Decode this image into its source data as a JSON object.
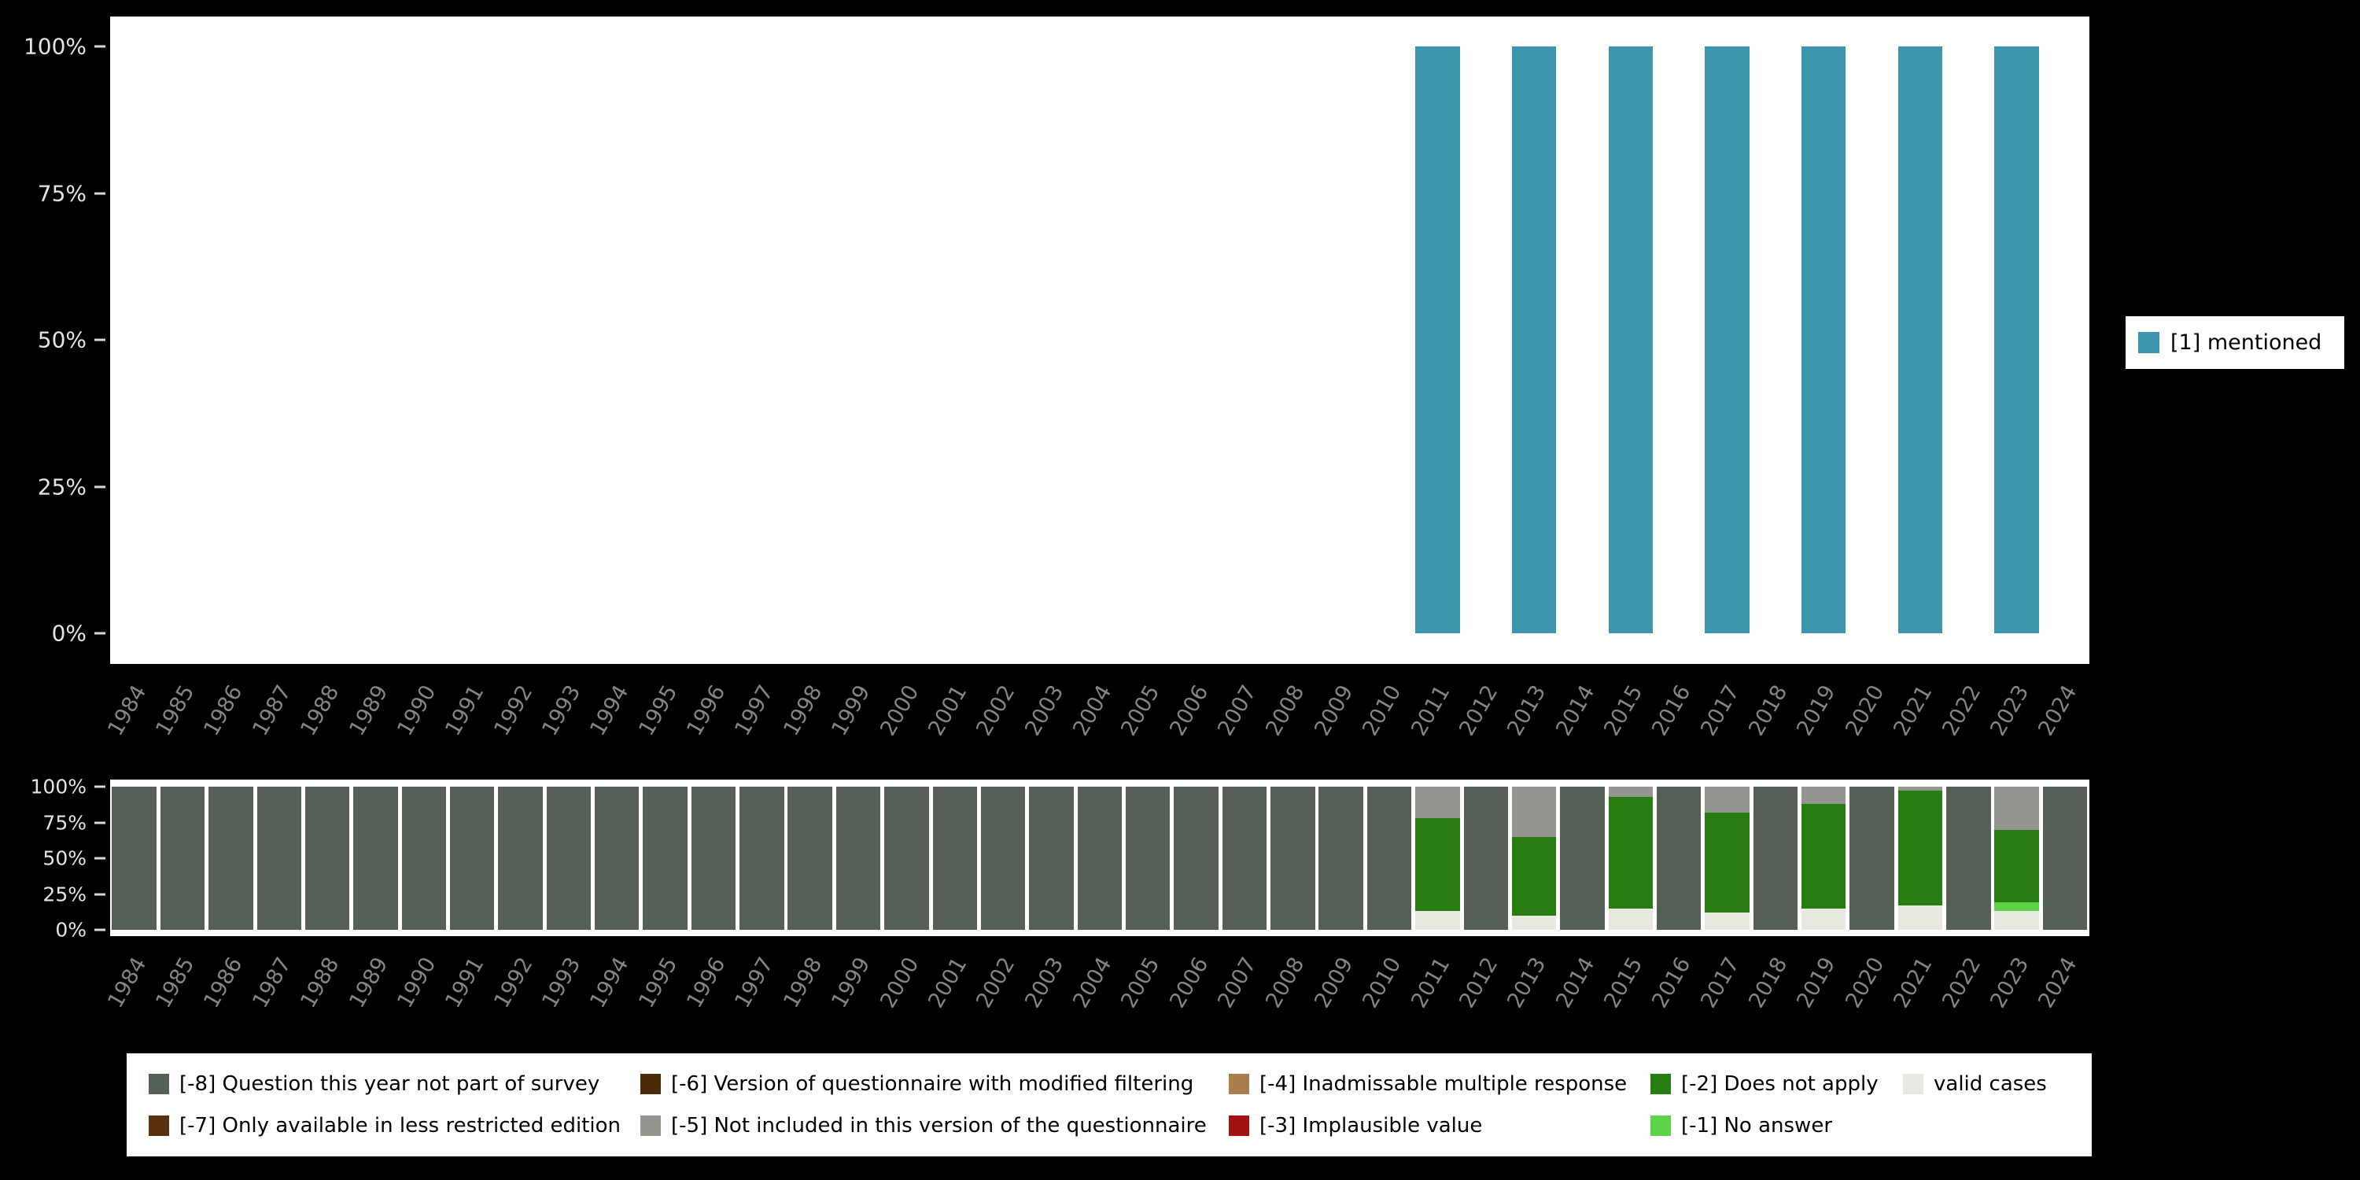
{
  "colors": {
    "background": "#000000",
    "panel": "#ffffff",
    "axis_tick_label": "#e4e4e4",
    "year_label": "#858585"
  },
  "categories": {
    "valid": {
      "label": "valid cases",
      "color": "#e8e8e0"
    },
    "m1": {
      "label": "[-1] No answer",
      "color": "#5cd348"
    },
    "m2": {
      "label": "[-2] Does not apply",
      "color": "#277c12"
    },
    "m3": {
      "label": "[-3] Implausible value",
      "color": "#a31212"
    },
    "m4": {
      "label": "[-4] Inadmissable multiple response",
      "color": "#a97e4f"
    },
    "m5": {
      "label": "[-5] Not included in this version of the questionnaire",
      "color": "#93978f"
    },
    "m6": {
      "label": "[-6] Version of questionnaire with modified filtering",
      "color": "#4a2a08"
    },
    "m7": {
      "label": "[-7] Only available in less restricted edition",
      "color": "#5a3110"
    },
    "m8": {
      "label": "[-8] Question this year not part of survey",
      "color": "#565f56"
    }
  },
  "chart_data": [
    {
      "type": "bar",
      "title": "",
      "xlabel": "",
      "ylabel": "",
      "ylim": [
        0,
        100
      ],
      "grid": false,
      "legend_position": "right",
      "yticks": [
        {
          "pct": 100,
          "label": "100%"
        },
        {
          "pct": 75,
          "label": "75%"
        },
        {
          "pct": 50,
          "label": "50%"
        },
        {
          "pct": 25,
          "label": "25%"
        },
        {
          "pct": 0,
          "label": "0%"
        }
      ],
      "categories": [
        "1984",
        "1985",
        "1986",
        "1987",
        "1988",
        "1989",
        "1990",
        "1991",
        "1992",
        "1993",
        "1994",
        "1995",
        "1996",
        "1997",
        "1998",
        "1999",
        "2000",
        "2001",
        "2002",
        "2003",
        "2004",
        "2005",
        "2006",
        "2007",
        "2008",
        "2009",
        "2010",
        "2011",
        "2012",
        "2013",
        "2014",
        "2015",
        "2016",
        "2017",
        "2018",
        "2019",
        "2020",
        "2021",
        "2022",
        "2023",
        "2024"
      ],
      "series": [
        {
          "name": "[1] mentioned",
          "color": "#3c96ad",
          "values": [
            0,
            0,
            0,
            0,
            0,
            0,
            0,
            0,
            0,
            0,
            0,
            0,
            0,
            0,
            0,
            0,
            0,
            0,
            0,
            0,
            0,
            0,
            0,
            0,
            0,
            0,
            0,
            100,
            0,
            100,
            0,
            100,
            0,
            100,
            0,
            100,
            0,
            100,
            0,
            100,
            0
          ]
        }
      ]
    },
    {
      "type": "stacked-bar",
      "title": "",
      "xlabel": "",
      "ylabel": "",
      "ylim": [
        0,
        100
      ],
      "grid": false,
      "legend_position": "bottom",
      "yticks": [
        {
          "pct": 100,
          "label": "100%"
        },
        {
          "pct": 75,
          "label": "75%"
        },
        {
          "pct": 50,
          "label": "50%"
        },
        {
          "pct": 25,
          "label": "25%"
        },
        {
          "pct": 0,
          "label": "0%"
        }
      ],
      "categories": [
        "1984",
        "1985",
        "1986",
        "1987",
        "1988",
        "1989",
        "1990",
        "1991",
        "1992",
        "1993",
        "1994",
        "1995",
        "1996",
        "1997",
        "1998",
        "1999",
        "2000",
        "2001",
        "2002",
        "2003",
        "2004",
        "2005",
        "2006",
        "2007",
        "2008",
        "2009",
        "2010",
        "2011",
        "2012",
        "2013",
        "2014",
        "2015",
        "2016",
        "2017",
        "2018",
        "2019",
        "2020",
        "2021",
        "2022",
        "2023",
        "2024"
      ],
      "series": [
        {
          "id": "valid",
          "values": [
            0,
            0,
            0,
            0,
            0,
            0,
            0,
            0,
            0,
            0,
            0,
            0,
            0,
            0,
            0,
            0,
            0,
            0,
            0,
            0,
            0,
            0,
            0,
            0,
            0,
            0,
            0,
            13,
            0,
            10,
            0,
            15,
            0,
            12,
            0,
            15,
            0,
            17,
            0,
            13,
            0
          ]
        },
        {
          "id": "m1",
          "values": [
            0,
            0,
            0,
            0,
            0,
            0,
            0,
            0,
            0,
            0,
            0,
            0,
            0,
            0,
            0,
            0,
            0,
            0,
            0,
            0,
            0,
            0,
            0,
            0,
            0,
            0,
            0,
            0,
            0,
            0,
            0,
            0,
            0,
            0,
            0,
            0,
            0,
            0,
            0,
            6,
            0
          ]
        },
        {
          "id": "m2",
          "values": [
            0,
            0,
            0,
            0,
            0,
            0,
            0,
            0,
            0,
            0,
            0,
            0,
            0,
            0,
            0,
            0,
            0,
            0,
            0,
            0,
            0,
            0,
            0,
            0,
            0,
            0,
            0,
            65,
            0,
            55,
            0,
            78,
            0,
            70,
            0,
            73,
            0,
            80,
            0,
            51,
            0
          ]
        },
        {
          "id": "m3",
          "values": [
            0,
            0,
            0,
            0,
            0,
            0,
            0,
            0,
            0,
            0,
            0,
            0,
            0,
            0,
            0,
            0,
            0,
            0,
            0,
            0,
            0,
            0,
            0,
            0,
            0,
            0,
            0,
            0,
            0,
            0,
            0,
            0,
            0,
            0,
            0,
            0,
            0,
            0,
            0,
            0,
            0
          ]
        },
        {
          "id": "m4",
          "values": [
            0,
            0,
            0,
            0,
            0,
            0,
            0,
            0,
            0,
            0,
            0,
            0,
            0,
            0,
            0,
            0,
            0,
            0,
            0,
            0,
            0,
            0,
            0,
            0,
            0,
            0,
            0,
            0,
            0,
            0,
            0,
            0,
            0,
            0,
            0,
            0,
            0,
            0,
            0,
            0,
            0
          ]
        },
        {
          "id": "m5",
          "values": [
            0,
            0,
            0,
            0,
            0,
            0,
            0,
            0,
            0,
            0,
            0,
            0,
            0,
            0,
            0,
            0,
            0,
            0,
            0,
            0,
            0,
            0,
            0,
            0,
            0,
            0,
            0,
            22,
            0,
            35,
            0,
            7,
            0,
            18,
            0,
            12,
            0,
            3,
            0,
            30,
            0
          ]
        },
        {
          "id": "m6",
          "values": [
            0,
            0,
            0,
            0,
            0,
            0,
            0,
            0,
            0,
            0,
            0,
            0,
            0,
            0,
            0,
            0,
            0,
            0,
            0,
            0,
            0,
            0,
            0,
            0,
            0,
            0,
            0,
            0,
            0,
            0,
            0,
            0,
            0,
            0,
            0,
            0,
            0,
            0,
            0,
            0,
            0
          ]
        },
        {
          "id": "m7",
          "values": [
            0,
            0,
            0,
            0,
            0,
            0,
            0,
            0,
            0,
            0,
            0,
            0,
            0,
            0,
            0,
            0,
            0,
            0,
            0,
            0,
            0,
            0,
            0,
            0,
            0,
            0,
            0,
            0,
            0,
            0,
            0,
            0,
            0,
            0,
            0,
            0,
            0,
            0,
            0,
            0,
            0
          ]
        },
        {
          "id": "m8",
          "values": [
            100,
            100,
            100,
            100,
            100,
            100,
            100,
            100,
            100,
            100,
            100,
            100,
            100,
            100,
            100,
            100,
            100,
            100,
            100,
            100,
            100,
            100,
            100,
            100,
            100,
            100,
            100,
            0,
            100,
            0,
            100,
            0,
            100,
            0,
            100,
            0,
            100,
            0,
            100,
            0,
            100
          ]
        }
      ],
      "legend_rows": [
        [
          "m8",
          "m6",
          "m4",
          "m2",
          "valid"
        ],
        [
          "m7",
          "m5",
          "m3",
          "m1"
        ]
      ]
    }
  ]
}
